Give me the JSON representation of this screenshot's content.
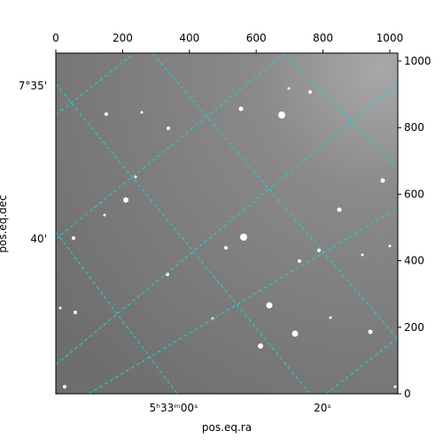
{
  "chart_data": {
    "type": "image",
    "xlabel": "pos.eq.ra",
    "ylabel": "pos.eq.dec",
    "xlim": [
      0,
      1024
    ],
    "ylim": [
      0,
      1024
    ],
    "xticks": [
      0,
      200,
      400,
      600,
      800,
      1000
    ],
    "yticks": [
      0,
      200,
      400,
      600,
      800,
      1000
    ],
    "ra_tick_labels": [
      "5ʰ33ᵐ00ˢ",
      "20ˢ"
    ],
    "dec_tick_labels": [
      "7°35'",
      "40'"
    ],
    "grid": true,
    "grid_color": "#1ad3d3"
  }
}
